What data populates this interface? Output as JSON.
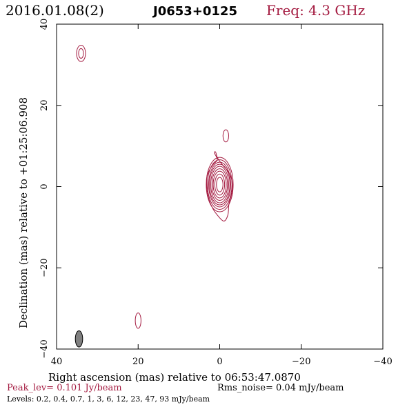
{
  "header": {
    "date": "2016.01.08(2)",
    "source": "J0653+0125",
    "freq": "Freq: 4.3 GHz"
  },
  "colors": {
    "contour": "#a3193f",
    "beam": "#808080",
    "frame": "#000000"
  },
  "chart_data": {
    "type": "contour",
    "xlabel": "Right ascension (mas) relative to 06:53:47.0870",
    "ylabel": "Declination (mas) relative to +01:25:06.908",
    "xlim": [
      40,
      -40
    ],
    "ylim": [
      -40,
      40
    ],
    "xticks": [
      40,
      20,
      0,
      -20,
      -40
    ],
    "yticks": [
      -40,
      -20,
      0,
      20,
      40
    ],
    "xtick_labels": [
      "40",
      "20",
      "0",
      "−20",
      "−40"
    ],
    "ytick_labels": [
      "−40",
      "−20",
      "0",
      "20",
      "40"
    ],
    "core": {
      "x": 0,
      "y": 0.5,
      "rings": [
        {
          "rx": 0.8,
          "ry": 1.8
        },
        {
          "rx": 1.2,
          "ry": 2.6
        },
        {
          "rx": 1.6,
          "ry": 3.3
        },
        {
          "rx": 1.9,
          "ry": 3.9
        },
        {
          "rx": 2.2,
          "ry": 4.5
        },
        {
          "rx": 2.5,
          "ry": 5.0
        },
        {
          "rx": 2.7,
          "ry": 5.5
        },
        {
          "rx": 3.0,
          "ry": 6.1
        },
        {
          "rx": 3.3,
          "ry": 6.7
        }
      ],
      "outer_contour": [
        [
          1.3,
          8.3
        ],
        [
          0.6,
          6.6
        ],
        [
          1.8,
          5.2
        ],
        [
          3.0,
          3.0
        ],
        [
          3.2,
          0.5
        ],
        [
          2.8,
          -2.5
        ],
        [
          1.9,
          -5.0
        ],
        [
          0.6,
          -7.0
        ],
        [
          -1.0,
          -8.5
        ],
        [
          -2.0,
          -7.0
        ],
        [
          -2.3,
          -4.0
        ],
        [
          -3.0,
          -1.5
        ],
        [
          -3.0,
          1.5
        ],
        [
          -2.0,
          3.8
        ],
        [
          -0.8,
          5.2
        ],
        [
          0.5,
          7.0
        ],
        [
          1.0,
          8.5
        ]
      ]
    },
    "components": [
      {
        "x": 34.0,
        "y": 32.8,
        "rx": 1.1,
        "ry": 2.0
      },
      {
        "x": 34.0,
        "y": 32.8,
        "rx": 0.6,
        "ry": 1.2
      },
      {
        "x": -1.5,
        "y": 12.5,
        "rx": 0.7,
        "ry": 1.5
      },
      {
        "x": 20.0,
        "y": -33.0,
        "rx": 0.7,
        "ry": 1.9
      }
    ],
    "beam": {
      "x": 34.5,
      "y": -37.5,
      "rx": 0.9,
      "ry": 2.0
    },
    "footer": {
      "peak": "Peak_lev=  0.101 Jy/beam",
      "rms": "Rms_noise= 0.04 mJy/beam",
      "levels": "Levels: 0.2,  0.4,  0.7,     1,     3,     6,    12,    23,    47,    93  mJy/beam"
    }
  }
}
